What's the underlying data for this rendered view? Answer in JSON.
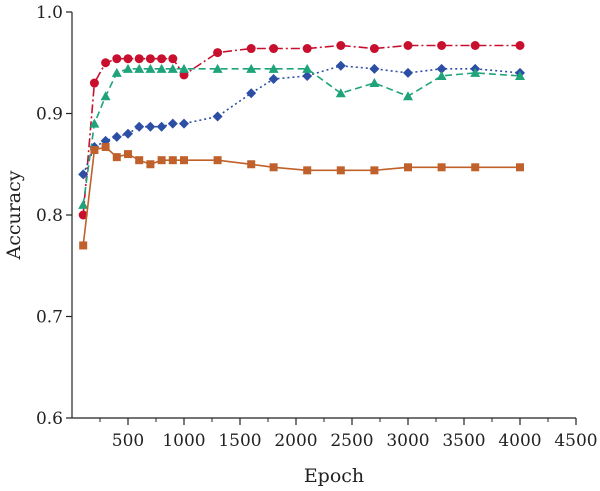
{
  "chart_data": {
    "type": "line",
    "xlabel": "Epoch",
    "ylabel": "Accuracy",
    "xlim": [
      0,
      4500
    ],
    "ylim": [
      0.6,
      1.0
    ],
    "x_ticks": [
      500,
      1000,
      1500,
      2000,
      2500,
      3000,
      3500,
      4000,
      4500
    ],
    "x_tick_labels": [
      "500",
      "1000",
      "1500",
      "2000",
      "2500",
      "3000",
      "3500",
      "4000",
      "4500"
    ],
    "y_ticks": [
      0.6,
      0.7,
      0.8,
      0.9,
      1.0
    ],
    "y_tick_labels": [
      "0.6",
      "0.7",
      "0.8",
      "0.9",
      "1.0"
    ],
    "grid": false,
    "legend": false,
    "series": [
      {
        "color": "#c8102e",
        "marker": "circle",
        "line_style": "dash-dot",
        "x": [
          100,
          200,
          300,
          400,
          500,
          600,
          700,
          800,
          900,
          1000,
          1300,
          1600,
          1800,
          2100,
          2400,
          2700,
          3000,
          3300,
          3600,
          4000
        ],
        "y": [
          0.8,
          0.93,
          0.95,
          0.954,
          0.954,
          0.954,
          0.954,
          0.954,
          0.954,
          0.938,
          0.96,
          0.964,
          0.964,
          0.964,
          0.967,
          0.964,
          0.967,
          0.967,
          0.967,
          0.967
        ]
      },
      {
        "color": "#2d4ea5",
        "marker": "diamond",
        "line_style": "dotted",
        "x": [
          100,
          200,
          300,
          400,
          500,
          600,
          700,
          800,
          900,
          1000,
          1300,
          1600,
          1800,
          2100,
          2400,
          2700,
          3000,
          3300,
          3600,
          4000
        ],
        "y": [
          0.84,
          0.867,
          0.873,
          0.877,
          0.88,
          0.887,
          0.887,
          0.887,
          0.89,
          0.89,
          0.897,
          0.92,
          0.934,
          0.937,
          0.947,
          0.944,
          0.94,
          0.944,
          0.944,
          0.94
        ]
      },
      {
        "color": "#1fa37a",
        "marker": "triangle",
        "line_style": "dashed",
        "x": [
          100,
          200,
          300,
          400,
          500,
          600,
          700,
          800,
          900,
          1000,
          1300,
          1600,
          1800,
          2100,
          2400,
          2700,
          3000,
          3300,
          3600,
          4000
        ],
        "y": [
          0.81,
          0.89,
          0.917,
          0.94,
          0.944,
          0.944,
          0.944,
          0.944,
          0.944,
          0.944,
          0.944,
          0.944,
          0.944,
          0.944,
          0.92,
          0.93,
          0.917,
          0.937,
          0.94,
          0.937
        ]
      },
      {
        "color": "#c0602a",
        "marker": "square",
        "line_style": "solid",
        "x": [
          100,
          200,
          300,
          400,
          500,
          600,
          700,
          800,
          900,
          1000,
          1300,
          1600,
          1800,
          2100,
          2400,
          2700,
          3000,
          3300,
          3600,
          4000
        ],
        "y": [
          0.77,
          0.864,
          0.867,
          0.857,
          0.86,
          0.854,
          0.85,
          0.854,
          0.854,
          0.854,
          0.854,
          0.85,
          0.847,
          0.844,
          0.844,
          0.844,
          0.847,
          0.847,
          0.847,
          0.847
        ]
      }
    ]
  }
}
